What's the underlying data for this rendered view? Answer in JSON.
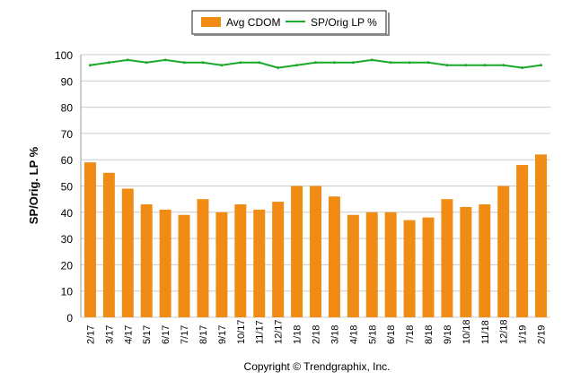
{
  "chart_data": {
    "type": "bar",
    "ylabel": "SP/Orig. LP %",
    "ylim": [
      0,
      100
    ],
    "yticks": [
      0,
      10,
      20,
      30,
      40,
      50,
      60,
      70,
      80,
      90,
      100
    ],
    "grid": true,
    "legend_placement": "top",
    "categories": [
      "2/17",
      "3/17",
      "4/17",
      "5/17",
      "6/17",
      "7/17",
      "8/17",
      "9/17",
      "10/17",
      "11/17",
      "12/17",
      "1/18",
      "2/18",
      "3/18",
      "4/18",
      "5/18",
      "6/18",
      "7/18",
      "8/18",
      "9/18",
      "10/18",
      "11/18",
      "12/18",
      "1/19",
      "2/19"
    ],
    "series": [
      {
        "name": "Avg CDOM",
        "type": "bar",
        "color": "#F08C14",
        "values": [
          59,
          55,
          49,
          43,
          41,
          39,
          45,
          40,
          43,
          41,
          44,
          50,
          50,
          46,
          39,
          40,
          40,
          37,
          38,
          45,
          42,
          43,
          50,
          58,
          62
        ]
      },
      {
        "name": "SP/Orig LP %",
        "type": "line",
        "color": "#1AAA2A",
        "values": [
          96,
          97,
          98,
          97,
          98,
          97,
          97,
          96,
          97,
          97,
          95,
          96,
          97,
          97,
          97,
          98,
          97,
          97,
          97,
          96,
          96,
          96,
          96,
          95,
          96
        ]
      }
    ]
  },
  "footer": "Copyright © Trendgraphix, Inc."
}
